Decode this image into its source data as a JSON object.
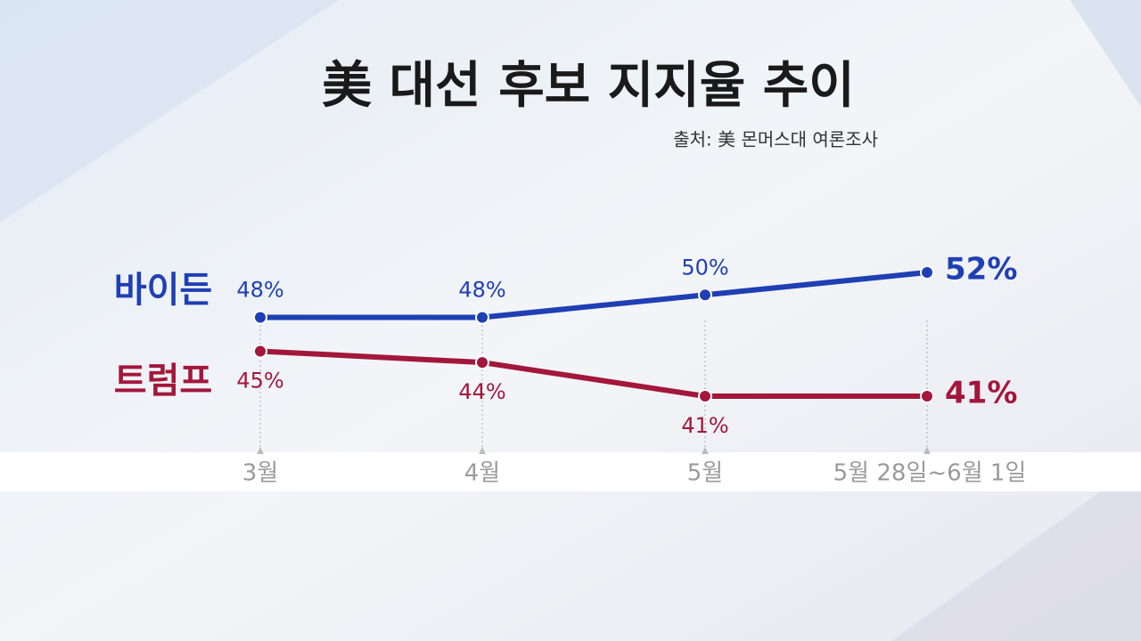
{
  "chart_data": {
    "type": "line",
    "title": "美 대선 후보 지지율 추이",
    "subtitle": "출처: 美 몬머스대 여론조사",
    "categories": [
      "3월",
      "4월",
      "5월",
      "5월 28일~6월 1일"
    ],
    "series": [
      {
        "name": "바이든",
        "color": "#1f3fb4",
        "values": [
          48,
          48,
          50,
          52
        ],
        "value_labels": [
          "48%",
          "48%",
          "50%",
          "52%"
        ]
      },
      {
        "name": "트럼프",
        "color": "#a3173b",
        "values": [
          45,
          44,
          41,
          41
        ],
        "value_labels": [
          "45%",
          "44%",
          "41%",
          "41%"
        ]
      }
    ]
  }
}
